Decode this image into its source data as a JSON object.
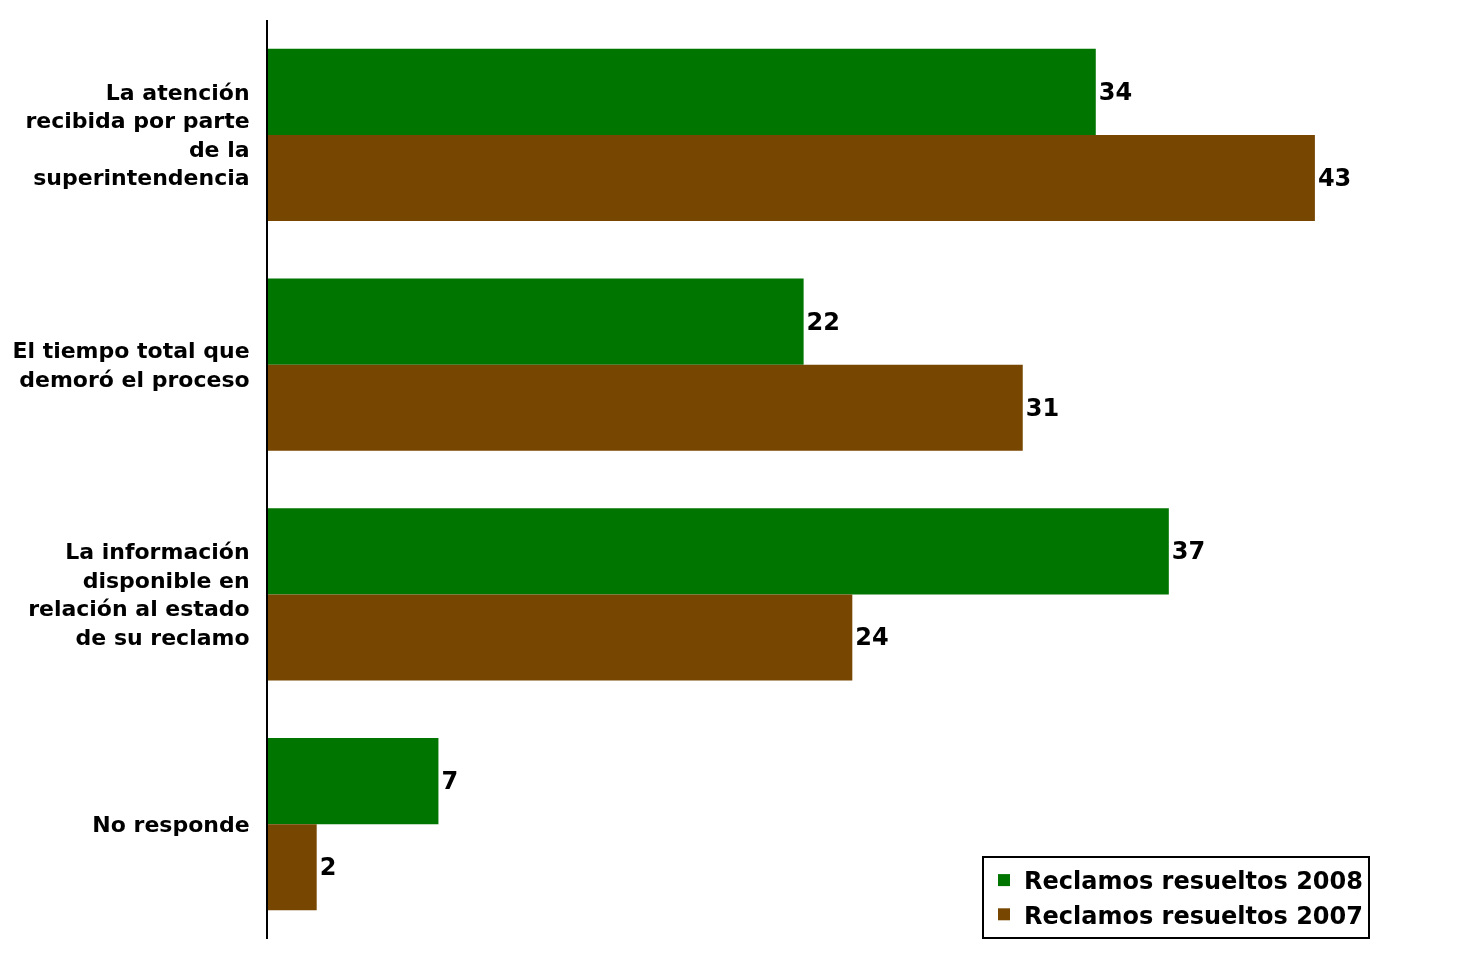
{
  "chart_data": {
    "type": "bar",
    "orientation": "horizontal",
    "categories": [
      "La atención recibida por parte de la superintendencia",
      "El tiempo total que demoró el proceso",
      "La información disponible en relación al estado de su reclamo",
      "No responde"
    ],
    "series": [
      {
        "name": "Reclamos resueltos 2008",
        "color": "#007500",
        "values": [
          34,
          22,
          37,
          7
        ]
      },
      {
        "name": "Reclamos resueltos 2007",
        "color": "#774600",
        "values": [
          43,
          31,
          24,
          2
        ]
      }
    ],
    "data_labels": true,
    "legend": "bottom right",
    "tick_labels": "y"
  }
}
